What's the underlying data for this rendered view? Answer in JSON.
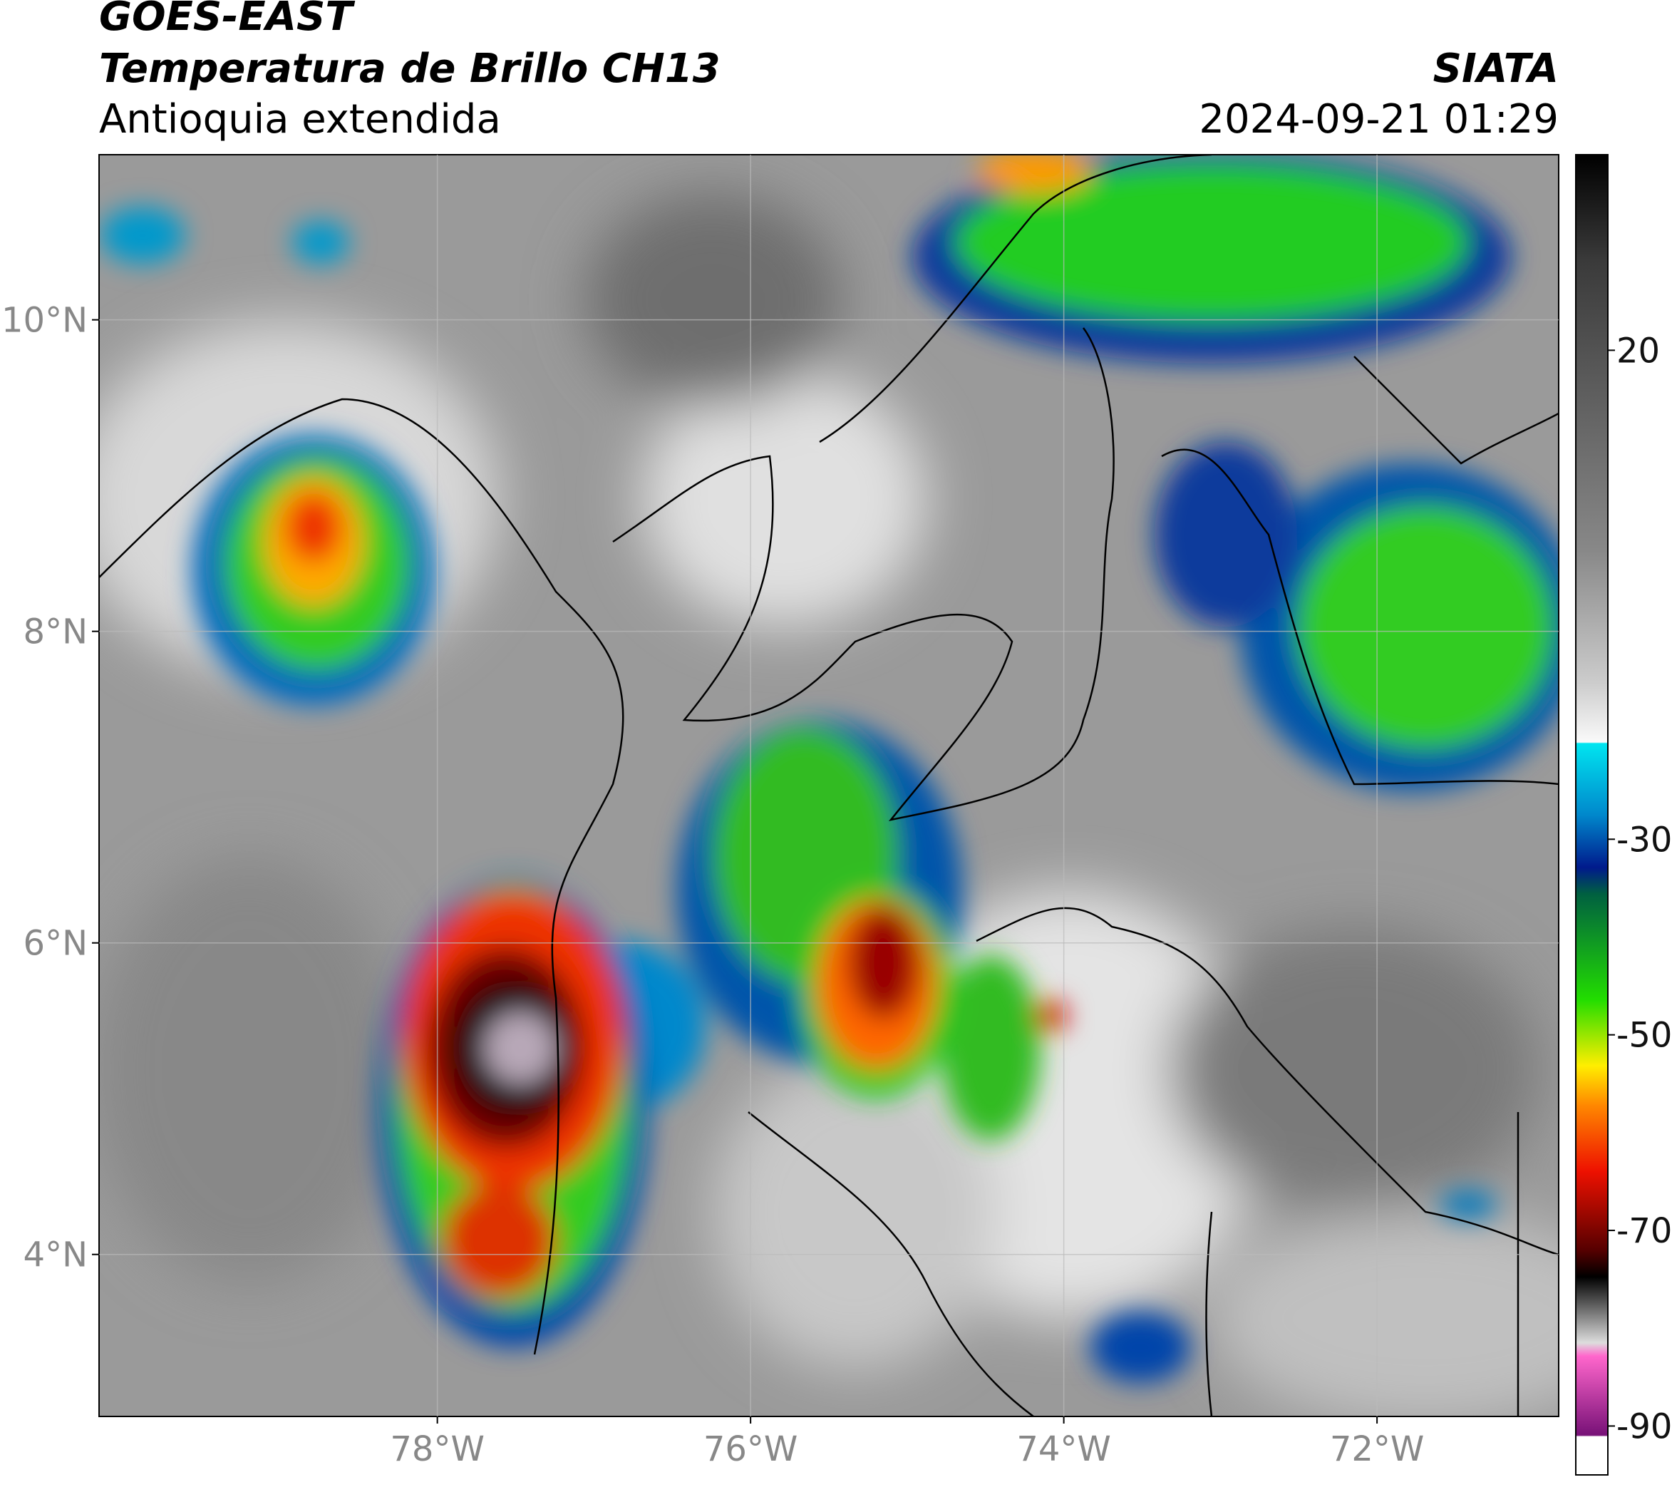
{
  "chart_data": {
    "type": "map",
    "title": "GOES-EAST",
    "subtitle": "Temperatura de Brillo CH13",
    "region": "Antioquia extendida",
    "source": "SIATA",
    "datetime": "2024-09-21 01:29",
    "xlim": [
      -80.16,
      -70.84
    ],
    "ylim": [
      2.96,
      11.06
    ],
    "xticks": [
      {
        "value": -78,
        "label": "78°W"
      },
      {
        "value": -76,
        "label": "76°W"
      },
      {
        "value": -74,
        "label": "74°W"
      },
      {
        "value": -72,
        "label": "72°W"
      }
    ],
    "yticks": [
      {
        "value": 4,
        "label": "4°N"
      },
      {
        "value": 6,
        "label": "6°N"
      },
      {
        "value": 8,
        "label": "8°N"
      },
      {
        "value": 10,
        "label": "10°N"
      }
    ],
    "grid": true,
    "colorbar": {
      "lim": [
        -95,
        40
      ],
      "ticks": [
        20,
        -30,
        -50,
        -70,
        -90
      ]
    }
  }
}
